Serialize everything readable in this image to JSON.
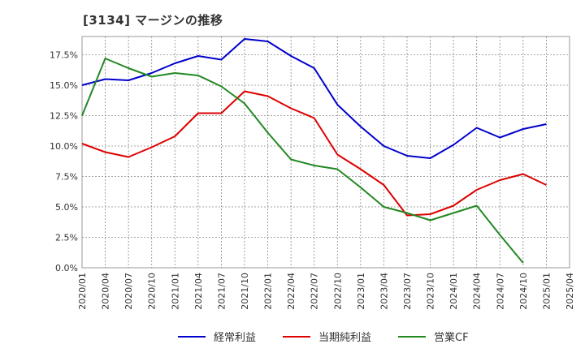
{
  "title": "[3134]  マージンの推移",
  "chart_data": {
    "type": "line",
    "title": "[3134]  マージンの推移",
    "xlabel": "",
    "ylabel": "",
    "ylim": [
      0,
      0.19
    ],
    "grid": true,
    "legend_position": "bottom",
    "y_ticks": [
      {
        "value": 0.0,
        "label": "0.0%"
      },
      {
        "value": 0.025,
        "label": "2.5%"
      },
      {
        "value": 0.05,
        "label": "5.0%"
      },
      {
        "value": 0.075,
        "label": "7.5%"
      },
      {
        "value": 0.1,
        "label": "10.0%"
      },
      {
        "value": 0.125,
        "label": "12.5%"
      },
      {
        "value": 0.15,
        "label": "15.0%"
      },
      {
        "value": 0.175,
        "label": "17.5%"
      }
    ],
    "x": [
      "2020/01",
      "2020/04",
      "2020/07",
      "2020/10",
      "2021/01",
      "2021/04",
      "2021/07",
      "2021/10",
      "2022/01",
      "2022/04",
      "2022/07",
      "2022/10",
      "2023/01",
      "2023/04",
      "2023/07",
      "2023/10",
      "2024/01",
      "2024/04",
      "2024/07",
      "2024/10",
      "2025/01",
      "2025/04"
    ],
    "series": [
      {
        "name": "経常利益",
        "color": "#0000cc",
        "values": [
          0.15,
          0.155,
          0.154,
          0.16,
          0.168,
          0.174,
          0.171,
          0.188,
          0.186,
          0.174,
          0.164,
          0.134,
          0.116,
          0.1,
          0.092,
          0.09,
          0.101,
          0.115,
          0.107,
          0.114,
          0.118,
          null
        ]
      },
      {
        "name": "当期純利益",
        "color": "#dd0000",
        "values": [
          0.102,
          0.095,
          0.091,
          0.099,
          0.108,
          0.127,
          0.127,
          0.145,
          0.141,
          0.131,
          0.123,
          0.093,
          0.081,
          0.068,
          0.043,
          0.044,
          0.051,
          0.064,
          0.072,
          0.077,
          0.068,
          null
        ]
      },
      {
        "name": "営業CF",
        "color": "#228822",
        "values": [
          0.125,
          0.172,
          0.164,
          0.157,
          0.16,
          0.158,
          0.149,
          0.135,
          0.111,
          0.089,
          0.084,
          0.081,
          0.066,
          0.05,
          0.045,
          0.039,
          0.045,
          0.051,
          0.027,
          0.004,
          null,
          null
        ]
      }
    ]
  }
}
